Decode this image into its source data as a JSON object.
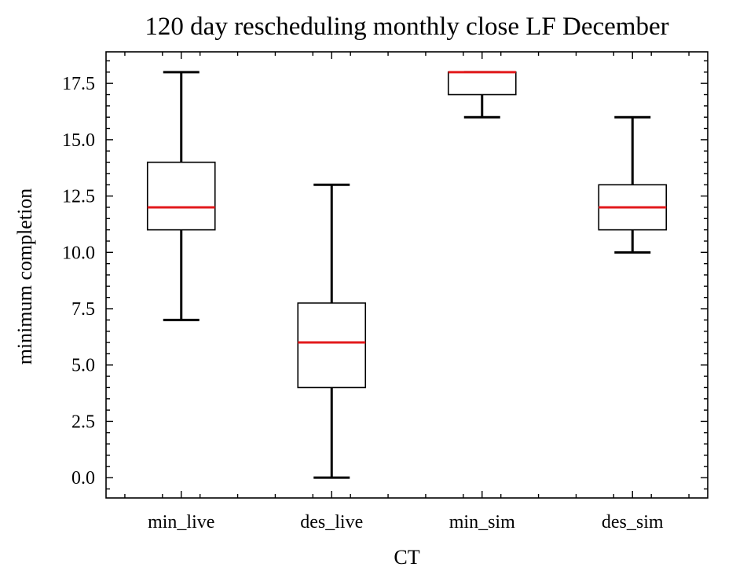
{
  "chart_data": {
    "type": "box",
    "title": "120 day rescheduling monthly close LF December",
    "xlabel": "CT",
    "ylabel": "minimum completion",
    "categories": [
      "min_live",
      "des_live",
      "min_sim",
      "des_sim"
    ],
    "boxes": [
      {
        "label": "min_live",
        "whisker_low": 7,
        "q1": 11,
        "median": 12,
        "q3": 14,
        "whisker_high": 18
      },
      {
        "label": "des_live",
        "whisker_low": 0,
        "q1": 4,
        "median": 6,
        "q3": 7.75,
        "whisker_high": 13
      },
      {
        "label": "min_sim",
        "whisker_low": 16,
        "q1": 17,
        "median": 18,
        "q3": 18,
        "whisker_high": 18
      },
      {
        "label": "des_sim",
        "whisker_low": 10,
        "q1": 11,
        "median": 12,
        "q3": 13,
        "whisker_high": 16
      }
    ],
    "ylim": [
      -0.9,
      18.9
    ],
    "yticks": [
      0.0,
      2.5,
      5.0,
      7.5,
      10.0,
      12.5,
      15.0,
      17.5
    ],
    "ytick_labels": [
      "0.0",
      "2.5",
      "5.0",
      "7.5",
      "10.0",
      "12.5",
      "15.0",
      "17.5"
    ],
    "median_color": "#e31a1c",
    "box_color": "#000000",
    "grid": false
  }
}
